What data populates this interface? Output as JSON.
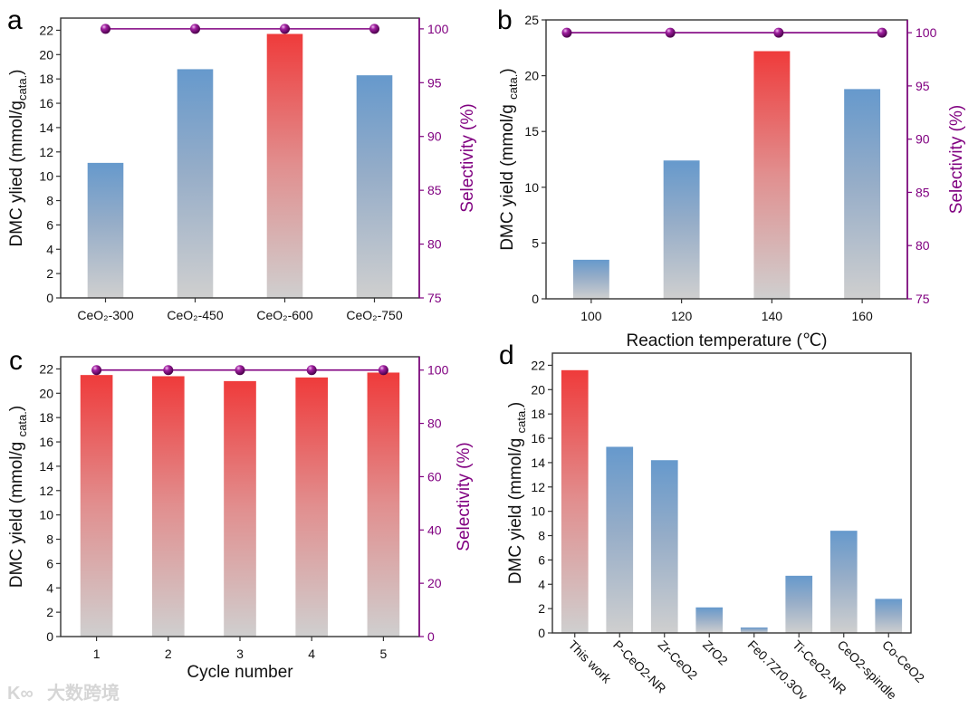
{
  "chart_data": [
    {
      "panel": "a",
      "type": "bar",
      "categories": [
        "CeO₂-300",
        "CeO₂-450",
        "CeO₂-600",
        "CeO₂-750"
      ],
      "values": [
        11.1,
        18.8,
        21.7,
        18.3
      ],
      "bar_colors": [
        "blue",
        "blue",
        "red",
        "blue"
      ],
      "ylabel": {
        "main": "DMC ylied (mmol/g",
        "sub": "cata.",
        "end": ")"
      },
      "ylim": [
        0,
        23
      ],
      "yticks": [
        0,
        2,
        4,
        6,
        8,
        10,
        12,
        14,
        16,
        18,
        20,
        22
      ],
      "xlabel": "",
      "secondary": {
        "label": "Selectivity (%)",
        "values": [
          100,
          100,
          100,
          100
        ],
        "ylim": [
          75,
          101
        ],
        "yticks": [
          75,
          80,
          85,
          90,
          95,
          100
        ]
      }
    },
    {
      "panel": "b",
      "type": "bar",
      "x": [
        100,
        120,
        140,
        160
      ],
      "values": [
        3.5,
        12.4,
        22.2,
        18.8
      ],
      "bar_colors": [
        "blue",
        "blue",
        "red",
        "blue"
      ],
      "xlim": [
        90,
        170
      ],
      "xticks": [
        100,
        120,
        140,
        160
      ],
      "xlabel": "Reaction temperature (℃)",
      "ylabel": {
        "main": "DMC yield (mmol/g ",
        "sub": "cata.",
        "end": ")"
      },
      "ylim": [
        0,
        25
      ],
      "yticks": [
        0,
        5,
        10,
        15,
        20,
        25
      ],
      "secondary": {
        "label": "Selectivity (%)",
        "x": [
          94.6,
          117.5,
          141.5,
          164.4
        ],
        "values": [
          100,
          100,
          100,
          100
        ],
        "ylim": [
          75,
          101.2
        ],
        "yticks": [
          75,
          80,
          85,
          90,
          95,
          100
        ]
      }
    },
    {
      "panel": "c",
      "type": "bar",
      "x": [
        1,
        2,
        3,
        4,
        5
      ],
      "values": [
        21.5,
        21.4,
        21.0,
        21.3,
        21.7
      ],
      "bar_colors": [
        "red",
        "red",
        "red",
        "red",
        "red"
      ],
      "xlim": [
        0.5,
        5.5
      ],
      "xticks": [
        1,
        2,
        3,
        4,
        5
      ],
      "xlabel": "Cycle number",
      "ylabel": {
        "main": "DMC yield (mmol/g ",
        "sub": "cata.",
        "end": ")"
      },
      "ylim": [
        0,
        23
      ],
      "yticks": [
        0,
        2,
        4,
        6,
        8,
        10,
        12,
        14,
        16,
        18,
        20,
        22
      ],
      "secondary": {
        "label": "Selectivity (%)",
        "x": [
          1,
          2,
          3,
          4,
          5
        ],
        "values": [
          100,
          100,
          100,
          100,
          100
        ],
        "ylim": [
          0,
          105
        ],
        "yticks": [
          0,
          20,
          40,
          60,
          80,
          100
        ]
      }
    },
    {
      "panel": "d",
      "type": "bar",
      "categories": [
        "This work",
        "P-CeO2-NR",
        "Zr-CeO2",
        "ZrO2",
        "Fe0.7Zr0.3Ov",
        "Ti-CeO2-NR",
        "CeO2-spindle",
        "Co-CeO2"
      ],
      "values": [
        21.6,
        15.3,
        14.2,
        2.1,
        0.45,
        4.7,
        8.4,
        2.8
      ],
      "bar_colors": [
        "red",
        "blue",
        "blue",
        "blue",
        "blue",
        "blue",
        "blue",
        "blue"
      ],
      "xlabel": "",
      "ylabel": {
        "main": "DMC yield (mmol/g ",
        "sub": "cata.",
        "end": ")"
      },
      "ylim": [
        0,
        23
      ],
      "yticks": [
        0,
        2,
        4,
        6,
        8,
        10,
        12,
        14,
        16,
        18,
        20,
        22
      ]
    }
  ],
  "colors": {
    "blue_top": "#6699cc",
    "red_top": "#ef3b3b",
    "bar_bottom": "#cfcfcf",
    "selectivity": "#800080",
    "axis": "#333333"
  },
  "watermark": "大数跨境"
}
